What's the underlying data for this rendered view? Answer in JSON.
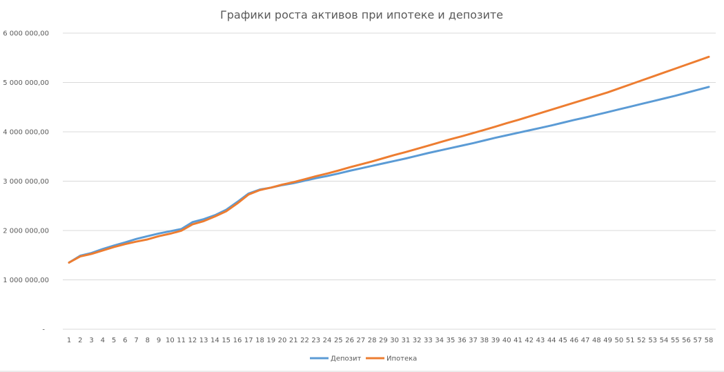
{
  "chart_data": {
    "type": "line",
    "title": "Графики роста активов при ипотеке и депозите",
    "xlabel": "",
    "ylabel": "",
    "ylim": [
      0,
      6000000
    ],
    "y_ticks": [
      0,
      1000000,
      2000000,
      3000000,
      4000000,
      5000000,
      6000000
    ],
    "y_tick_labels": [
      "-",
      "1 000 000,00",
      "2 000 000,00",
      "3 000 000,00",
      "4 000 000,00",
      "5 000 000,00",
      "6 000 000,00"
    ],
    "grid": true,
    "legend_placement": "bottom",
    "categories": [
      "1",
      "2",
      "3",
      "4",
      "5",
      "6",
      "7",
      "8",
      "9",
      "10",
      "11",
      "12",
      "13",
      "14",
      "15",
      "16",
      "17",
      "18",
      "19",
      "20",
      "21",
      "22",
      "23",
      "24",
      "25",
      "26",
      "27",
      "28",
      "29",
      "30",
      "31",
      "32",
      "33",
      "34",
      "35",
      "36",
      "37",
      "38",
      "39",
      "40",
      "41",
      "42",
      "43",
      "44",
      "45",
      "46",
      "47",
      "48",
      "49",
      "50",
      "51",
      "52",
      "53",
      "54",
      "55",
      "56",
      "57",
      "58"
    ],
    "series": [
      {
        "name": "Депозит",
        "color": "#5b9bd5",
        "values": [
          1350000,
          1490000,
          1545000,
          1625000,
          1695000,
          1760000,
          1830000,
          1885000,
          1940000,
          1985000,
          2030000,
          2170000,
          2230000,
          2310000,
          2420000,
          2580000,
          2750000,
          2830000,
          2870000,
          2920000,
          2960000,
          3010000,
          3060000,
          3105000,
          3155000,
          3210000,
          3260000,
          3310000,
          3360000,
          3410000,
          3460000,
          3515000,
          3570000,
          3620000,
          3670000,
          3720000,
          3770000,
          3825000,
          3880000,
          3930000,
          3980000,
          4030000,
          4080000,
          4130000,
          4185000,
          4240000,
          4290000,
          4345000,
          4400000,
          4455000,
          4510000,
          4565000,
          4620000,
          4675000,
          4730000,
          4790000,
          4850000,
          4910000
        ]
      },
      {
        "name": "Ипотека",
        "color": "#ed7d31",
        "values": [
          1350000,
          1475000,
          1525000,
          1595000,
          1665000,
          1725000,
          1775000,
          1820000,
          1885000,
          1935000,
          1995000,
          2125000,
          2190000,
          2285000,
          2390000,
          2550000,
          2730000,
          2820000,
          2870000,
          2930000,
          2980000,
          3040000,
          3100000,
          3155000,
          3215000,
          3280000,
          3340000,
          3400000,
          3465000,
          3530000,
          3590000,
          3655000,
          3720000,
          3785000,
          3850000,
          3910000,
          3975000,
          4040000,
          4105000,
          4175000,
          4240000,
          4310000,
          4380000,
          4450000,
          4520000,
          4590000,
          4660000,
          4730000,
          4800000,
          4880000,
          4960000,
          5040000,
          5120000,
          5200000,
          5280000,
          5360000,
          5440000,
          5520000
        ]
      }
    ]
  }
}
